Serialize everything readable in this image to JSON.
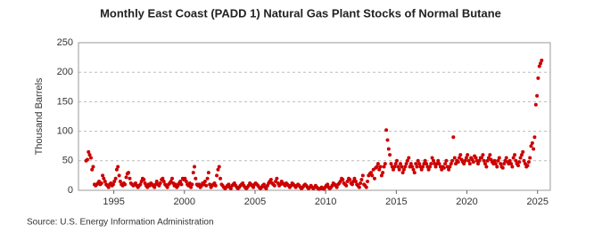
{
  "chart_data": {
    "type": "scatter",
    "title": "Monthly East Coast (PADD 1) Natural Gas Plant Stocks of Normal Butane",
    "y_label": "Thousand Barrels",
    "source": "Source: U.S. Energy Information Administration",
    "color": "#cc0000",
    "grid": true,
    "xlim": [
      1992.5,
      2025.9
    ],
    "xticks": [
      1995,
      2000,
      2005,
      2010,
      2015,
      2020,
      2025
    ],
    "ylim": [
      0,
      250
    ],
    "yticks": [
      0,
      50,
      100,
      150,
      200,
      250
    ],
    "x": [
      1993.04,
      1993.13,
      1993.21,
      1993.29,
      1993.38,
      1993.46,
      1993.54,
      1993.63,
      1993.71,
      1993.79,
      1993.88,
      1993.96,
      1994.04,
      1994.13,
      1994.21,
      1994.29,
      1994.38,
      1994.46,
      1994.54,
      1994.63,
      1994.71,
      1994.79,
      1994.88,
      1994.96,
      1995.04,
      1995.13,
      1995.21,
      1995.29,
      1995.38,
      1995.46,
      1995.54,
      1995.63,
      1995.71,
      1995.79,
      1995.88,
      1995.96,
      1996.04,
      1996.13,
      1996.21,
      1996.29,
      1996.38,
      1996.46,
      1996.54,
      1996.63,
      1996.71,
      1996.79,
      1996.88,
      1996.96,
      1997.04,
      1997.13,
      1997.21,
      1997.29,
      1997.38,
      1997.46,
      1997.54,
      1997.63,
      1997.71,
      1997.79,
      1997.88,
      1997.96,
      1998.04,
      1998.13,
      1998.21,
      1998.29,
      1998.38,
      1998.46,
      1998.54,
      1998.63,
      1998.71,
      1998.79,
      1998.88,
      1998.96,
      1999.04,
      1999.13,
      1999.21,
      1999.29,
      1999.38,
      1999.46,
      1999.54,
      1999.63,
      1999.71,
      1999.79,
      1999.88,
      1999.96,
      2000.04,
      2000.13,
      2000.21,
      2000.29,
      2000.38,
      2000.46,
      2000.54,
      2000.63,
      2000.71,
      2000.79,
      2000.88,
      2000.96,
      2001.04,
      2001.13,
      2001.21,
      2001.29,
      2001.38,
      2001.46,
      2001.54,
      2001.63,
      2001.71,
      2001.79,
      2001.88,
      2001.96,
      2002.04,
      2002.13,
      2002.21,
      2002.29,
      2002.38,
      2002.46,
      2002.54,
      2002.63,
      2002.71,
      2002.79,
      2002.88,
      2002.96,
      2003.04,
      2003.13,
      2003.21,
      2003.29,
      2003.38,
      2003.46,
      2003.54,
      2003.63,
      2003.71,
      2003.79,
      2003.88,
      2003.96,
      2004.04,
      2004.13,
      2004.21,
      2004.29,
      2004.38,
      2004.46,
      2004.54,
      2004.63,
      2004.71,
      2004.79,
      2004.88,
      2004.96,
      2005.04,
      2005.13,
      2005.21,
      2005.29,
      2005.38,
      2005.46,
      2005.54,
      2005.63,
      2005.71,
      2005.79,
      2005.88,
      2005.96,
      2006.04,
      2006.13,
      2006.21,
      2006.29,
      2006.38,
      2006.46,
      2006.54,
      2006.63,
      2006.71,
      2006.79,
      2006.88,
      2006.96,
      2007.04,
      2007.13,
      2007.21,
      2007.29,
      2007.38,
      2007.46,
      2007.54,
      2007.63,
      2007.71,
      2007.79,
      2007.88,
      2007.96,
      2008.04,
      2008.13,
      2008.21,
      2008.29,
      2008.38,
      2008.46,
      2008.54,
      2008.63,
      2008.71,
      2008.79,
      2008.88,
      2008.96,
      2009.04,
      2009.13,
      2009.21,
      2009.29,
      2009.38,
      2009.46,
      2009.54,
      2009.63,
      2009.71,
      2009.79,
      2009.88,
      2009.96,
      2010.04,
      2010.13,
      2010.21,
      2010.29,
      2010.38,
      2010.46,
      2010.54,
      2010.63,
      2010.71,
      2010.79,
      2010.88,
      2010.96,
      2011.04,
      2011.13,
      2011.21,
      2011.29,
      2011.38,
      2011.46,
      2011.54,
      2011.63,
      2011.71,
      2011.79,
      2011.88,
      2011.96,
      2012.04,
      2012.13,
      2012.21,
      2012.29,
      2012.38,
      2012.46,
      2012.54,
      2012.63,
      2012.71,
      2012.79,
      2012.88,
      2012.96,
      2013.04,
      2013.13,
      2013.21,
      2013.29,
      2013.38,
      2013.46,
      2013.54,
      2013.63,
      2013.71,
      2013.79,
      2013.88,
      2013.96,
      2014.04,
      2014.13,
      2014.21,
      2014.29,
      2014.38,
      2014.46,
      2014.54,
      2014.63,
      2014.71,
      2014.79,
      2014.88,
      2014.96,
      2015.04,
      2015.13,
      2015.21,
      2015.29,
      2015.38,
      2015.46,
      2015.54,
      2015.63,
      2015.71,
      2015.79,
      2015.88,
      2015.96,
      2016.04,
      2016.13,
      2016.21,
      2016.29,
      2016.38,
      2016.46,
      2016.54,
      2016.63,
      2016.71,
      2016.79,
      2016.88,
      2016.96,
      2017.04,
      2017.13,
      2017.21,
      2017.29,
      2017.38,
      2017.46,
      2017.54,
      2017.63,
      2017.71,
      2017.79,
      2017.88,
      2017.96,
      2018.04,
      2018.13,
      2018.21,
      2018.29,
      2018.38,
      2018.46,
      2018.54,
      2018.63,
      2018.71,
      2018.79,
      2018.88,
      2018.96,
      2019.04,
      2019.13,
      2019.21,
      2019.29,
      2019.38,
      2019.46,
      2019.54,
      2019.63,
      2019.71,
      2019.79,
      2019.88,
      2019.96,
      2020.04,
      2020.13,
      2020.21,
      2020.29,
      2020.38,
      2020.46,
      2020.54,
      2020.63,
      2020.71,
      2020.79,
      2020.88,
      2020.96,
      2021.04,
      2021.13,
      2021.21,
      2021.29,
      2021.38,
      2021.46,
      2021.54,
      2021.63,
      2021.71,
      2021.79,
      2021.88,
      2021.96,
      2022.04,
      2022.13,
      2022.21,
      2022.29,
      2022.38,
      2022.46,
      2022.54,
      2022.63,
      2022.71,
      2022.79,
      2022.88,
      2022.96,
      2023.04,
      2023.13,
      2023.21,
      2023.29,
      2023.38,
      2023.46,
      2023.54,
      2023.63,
      2023.71,
      2023.79,
      2023.88,
      2023.96,
      2024.04,
      2024.13,
      2024.21,
      2024.29,
      2024.38,
      2024.46,
      2024.54,
      2024.63,
      2024.71,
      2024.79,
      2024.88,
      2024.96,
      2025.04,
      2025.13,
      2025.21,
      2025.29
    ],
    "values": [
      50,
      52,
      65,
      60,
      55,
      35,
      40,
      10,
      8,
      10,
      12,
      15,
      10,
      12,
      25,
      20,
      15,
      10,
      8,
      5,
      10,
      12,
      8,
      10,
      15,
      20,
      35,
      40,
      25,
      15,
      10,
      8,
      12,
      10,
      22,
      28,
      30,
      20,
      12,
      10,
      8,
      10,
      12,
      8,
      5,
      8,
      10,
      15,
      20,
      18,
      12,
      8,
      5,
      10,
      8,
      12,
      10,
      8,
      5,
      10,
      15,
      10,
      8,
      12,
      18,
      20,
      15,
      10,
      8,
      5,
      10,
      12,
      15,
      20,
      12,
      8,
      10,
      5,
      8,
      12,
      15,
      10,
      20,
      18,
      20,
      15,
      10,
      8,
      12,
      5,
      10,
      30,
      40,
      20,
      10,
      8,
      10,
      5,
      8,
      12,
      10,
      15,
      8,
      20,
      30,
      10,
      5,
      8,
      10,
      12,
      8,
      25,
      35,
      40,
      20,
      10,
      8,
      5,
      3,
      5,
      8,
      10,
      5,
      3,
      8,
      10,
      12,
      8,
      5,
      3,
      5,
      8,
      10,
      12,
      8,
      5,
      3,
      5,
      8,
      12,
      10,
      8,
      5,
      10,
      12,
      10,
      8,
      5,
      3,
      5,
      8,
      10,
      5,
      3,
      8,
      12,
      15,
      18,
      12,
      10,
      8,
      15,
      20,
      12,
      8,
      10,
      15,
      12,
      10,
      8,
      12,
      10,
      8,
      5,
      8,
      12,
      10,
      8,
      5,
      8,
      10,
      8,
      5,
      3,
      5,
      8,
      10,
      8,
      5,
      3,
      5,
      8,
      5,
      3,
      5,
      8,
      5,
      3,
      2,
      3,
      5,
      3,
      2,
      5,
      8,
      10,
      5,
      3,
      5,
      8,
      12,
      10,
      8,
      5,
      10,
      12,
      15,
      20,
      18,
      12,
      10,
      8,
      15,
      20,
      18,
      12,
      10,
      15,
      20,
      15,
      10,
      8,
      5,
      12,
      18,
      25,
      10,
      8,
      5,
      15,
      25,
      28,
      30,
      25,
      35,
      20,
      38,
      40,
      45,
      35,
      40,
      25,
      30,
      40,
      45,
      102,
      85,
      70,
      60,
      45,
      40,
      35,
      40,
      45,
      50,
      40,
      35,
      45,
      40,
      30,
      35,
      40,
      45,
      50,
      55,
      40,
      45,
      40,
      35,
      30,
      45,
      40,
      50,
      45,
      40,
      35,
      40,
      45,
      50,
      45,
      40,
      35,
      40,
      45,
      55,
      50,
      45,
      40,
      45,
      50,
      45,
      40,
      35,
      40,
      38,
      45,
      50,
      40,
      35,
      40,
      45,
      50,
      90,
      55,
      45,
      50,
      48,
      55,
      60,
      52,
      48,
      45,
      50,
      55,
      60,
      50,
      45,
      55,
      52,
      48,
      58,
      55,
      50,
      45,
      50,
      55,
      55,
      60,
      50,
      45,
      40,
      50,
      55,
      60,
      52,
      48,
      45,
      50,
      45,
      40,
      50,
      55,
      45,
      40,
      38,
      45,
      50,
      55,
      48,
      45,
      50,
      45,
      40,
      55,
      60,
      50,
      45,
      42,
      48,
      55,
      60,
      65,
      50,
      45,
      40,
      42,
      48,
      55,
      75,
      80,
      70,
      90,
      145,
      160,
      190,
      210,
      215,
      220
    ]
  }
}
